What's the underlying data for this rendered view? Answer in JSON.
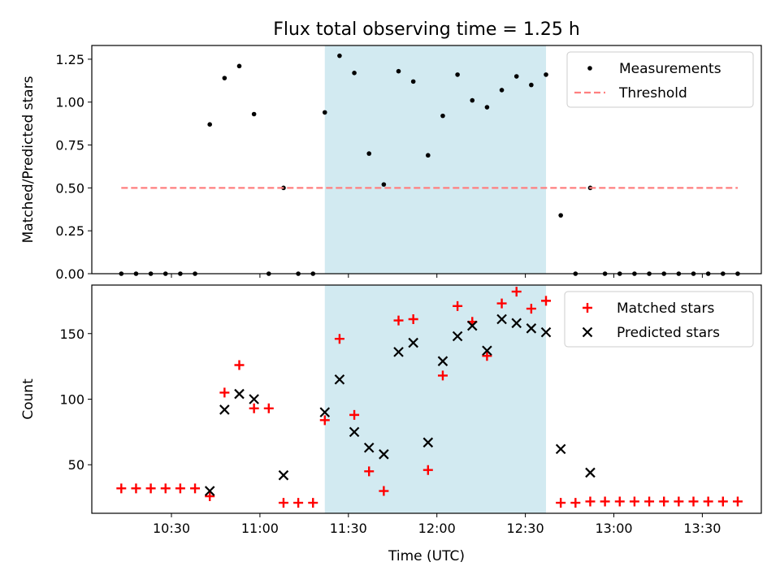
{
  "chart_data": {
    "type": "scatter",
    "title": "Flux total observing time = 1.25 h",
    "xlabel": "Time (UTC)",
    "x_unit": "UTC time of day",
    "xlim": [
      "10:03",
      "13:50"
    ],
    "x_tick_labels": [
      "10:30",
      "11:00",
      "11:30",
      "12:00",
      "12:30",
      "13:00",
      "13:30"
    ],
    "highlight_span": [
      "11:22",
      "12:37"
    ],
    "highlight_color": "#add8e6",
    "panels": [
      {
        "id": "ratio",
        "ylabel": "Matched/Predicted stars",
        "ylim": [
          0.0,
          1.33
        ],
        "y_ticks": [
          "0.00",
          "0.25",
          "0.50",
          "0.75",
          "1.00",
          "1.25"
        ],
        "legend_position": "top-right",
        "series": [
          {
            "name": "Measurements",
            "marker": "dot",
            "color": "#000000",
            "points": [
              [
                "10:13",
                0.0
              ],
              [
                "10:18",
                0.0
              ],
              [
                "10:23",
                0.0
              ],
              [
                "10:28",
                0.0
              ],
              [
                "10:33",
                0.0
              ],
              [
                "10:38",
                0.0
              ],
              [
                "10:43",
                0.87
              ],
              [
                "10:48",
                1.14
              ],
              [
                "10:53",
                1.21
              ],
              [
                "10:58",
                0.93
              ],
              [
                "11:03",
                0.0
              ],
              [
                "11:08",
                0.5
              ],
              [
                "11:13",
                0.0
              ],
              [
                "11:18",
                0.0
              ],
              [
                "11:22",
                0.94
              ],
              [
                "11:27",
                1.27
              ],
              [
                "11:32",
                1.17
              ],
              [
                "11:37",
                0.7
              ],
              [
                "11:42",
                0.52
              ],
              [
                "11:47",
                1.18
              ],
              [
                "11:52",
                1.12
              ],
              [
                "11:57",
                0.69
              ],
              [
                "12:02",
                0.92
              ],
              [
                "12:07",
                1.16
              ],
              [
                "12:12",
                1.01
              ],
              [
                "12:17",
                0.97
              ],
              [
                "12:22",
                1.07
              ],
              [
                "12:27",
                1.15
              ],
              [
                "12:32",
                1.1
              ],
              [
                "12:37",
                1.16
              ],
              [
                "12:42",
                0.34
              ],
              [
                "12:47",
                0.0
              ],
              [
                "12:52",
                0.5
              ],
              [
                "12:57",
                0.0
              ],
              [
                "13:02",
                0.0
              ],
              [
                "13:07",
                0.0
              ],
              [
                "13:12",
                0.0
              ],
              [
                "13:17",
                0.0
              ],
              [
                "13:22",
                0.0
              ],
              [
                "13:27",
                0.0
              ],
              [
                "13:32",
                0.0
              ],
              [
                "13:37",
                0.0
              ],
              [
                "13:42",
                0.0
              ]
            ]
          },
          {
            "name": "Threshold",
            "marker": "dashed-line",
            "color": "#ff7f7f",
            "points": [
              [
                "10:13",
                0.5
              ],
              [
                "13:42",
                0.5
              ]
            ]
          }
        ]
      },
      {
        "id": "counts",
        "ylabel": "Count",
        "ylim": [
          13,
          187
        ],
        "y_ticks": [
          "50",
          "100",
          "150"
        ],
        "legend_position": "top-right",
        "series": [
          {
            "name": "Matched stars",
            "marker": "plus",
            "color": "#ff0000",
            "points": [
              [
                "10:13",
                32
              ],
              [
                "10:18",
                32
              ],
              [
                "10:23",
                32
              ],
              [
                "10:28",
                32
              ],
              [
                "10:33",
                32
              ],
              [
                "10:38",
                32
              ],
              [
                "10:43",
                26
              ],
              [
                "10:48",
                105
              ],
              [
                "10:53",
                126
              ],
              [
                "10:58",
                93
              ],
              [
                "11:03",
                93
              ],
              [
                "11:08",
                21
              ],
              [
                "11:13",
                21
              ],
              [
                "11:18",
                21
              ],
              [
                "11:22",
                84
              ],
              [
                "11:27",
                146
              ],
              [
                "11:32",
                88
              ],
              [
                "11:37",
                45
              ],
              [
                "11:42",
                30
              ],
              [
                "11:47",
                160
              ],
              [
                "11:52",
                161
              ],
              [
                "11:57",
                46
              ],
              [
                "12:02",
                118
              ],
              [
                "12:07",
                171
              ],
              [
                "12:12",
                159
              ],
              [
                "12:17",
                133
              ],
              [
                "12:22",
                173
              ],
              [
                "12:27",
                182
              ],
              [
                "12:32",
                169
              ],
              [
                "12:37",
                175
              ],
              [
                "12:42",
                21
              ],
              [
                "12:47",
                21
              ],
              [
                "12:52",
                22
              ],
              [
                "12:57",
                22
              ],
              [
                "13:02",
                22
              ],
              [
                "13:07",
                22
              ],
              [
                "13:12",
                22
              ],
              [
                "13:17",
                22
              ],
              [
                "13:22",
                22
              ],
              [
                "13:27",
                22
              ],
              [
                "13:32",
                22
              ],
              [
                "13:37",
                22
              ],
              [
                "13:42",
                22
              ]
            ]
          },
          {
            "name": "Predicted stars",
            "marker": "x",
            "color": "#000000",
            "points": [
              [
                "10:43",
                30
              ],
              [
                "10:48",
                92
              ],
              [
                "10:53",
                104
              ],
              [
                "10:58",
                100
              ],
              [
                "11:08",
                42
              ],
              [
                "11:22",
                90
              ],
              [
                "11:27",
                115
              ],
              [
                "11:32",
                75
              ],
              [
                "11:37",
                63
              ],
              [
                "11:42",
                58
              ],
              [
                "11:47",
                136
              ],
              [
                "11:52",
                143
              ],
              [
                "11:57",
                67
              ],
              [
                "12:02",
                129
              ],
              [
                "12:07",
                148
              ],
              [
                "12:12",
                156
              ],
              [
                "12:17",
                137
              ],
              [
                "12:22",
                161
              ],
              [
                "12:27",
                158
              ],
              [
                "12:32",
                154
              ],
              [
                "12:37",
                151
              ],
              [
                "12:42",
                62
              ],
              [
                "12:52",
                44
              ]
            ]
          }
        ]
      }
    ]
  }
}
